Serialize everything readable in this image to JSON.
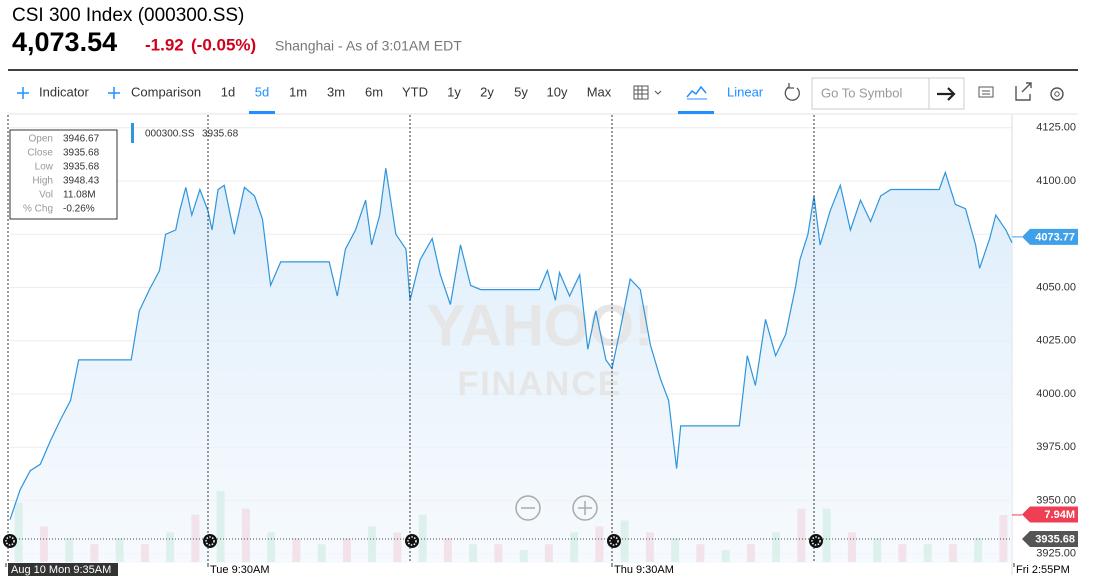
{
  "header": {
    "title": "CSI 300 Index (000300.SS)",
    "price": "4,073.54",
    "change": "-1.92",
    "change_pct": "(-0.05%)",
    "market_note": "Shanghai - As of 3:01AM EDT"
  },
  "toolbar": {
    "indicator": "Indicator",
    "comparison": "Comparison",
    "ranges": [
      "1d",
      "5d",
      "1m",
      "3m",
      "6m",
      "YTD",
      "1y",
      "2y",
      "5y",
      "10y",
      "Max"
    ],
    "active_range": "5d",
    "scale": "Linear",
    "symbol_placeholder": "Go To Symbol"
  },
  "info_box": [
    {
      "label": "Open",
      "value": "3946.67"
    },
    {
      "label": "Close",
      "value": "3935.68"
    },
    {
      "label": "Low",
      "value": "3935.68"
    },
    {
      "label": "High",
      "value": "3948.43"
    },
    {
      "label": "Vol",
      "value": "11.08M"
    },
    {
      "label": "% Chg",
      "value": "-0.26%"
    }
  ],
  "watermark": [
    "YAHOO!",
    "FINANCE"
  ],
  "chart_data": {
    "type": "line",
    "series": [
      {
        "name": "000300.SS",
        "legend_value": "3935.68",
        "color": "#2f95dc",
        "x": [
          0.02,
          0.07,
          0.12,
          0.17,
          0.22,
          0.27,
          0.32,
          0.36,
          0.62,
          0.66,
          0.71,
          0.76,
          0.79,
          0.84,
          0.86,
          0.89,
          0.92,
          0.96,
          1.0,
          1.02,
          1.05,
          1.08,
          1.13,
          1.18,
          1.23,
          1.27,
          1.31,
          1.36,
          1.6,
          1.64,
          1.68,
          1.73,
          1.78,
          1.81,
          1.85,
          1.88,
          1.93,
          1.98,
          2.0,
          2.05,
          2.11,
          2.15,
          2.2,
          2.25,
          2.3,
          2.35,
          2.64,
          2.68,
          2.72,
          2.74,
          2.79,
          2.84,
          2.88,
          2.92,
          2.97,
          3.0,
          3.04,
          3.09,
          3.14,
          3.19,
          3.24,
          3.28,
          3.32,
          3.34,
          3.63,
          3.67,
          3.71,
          3.76,
          3.81,
          3.86,
          3.91,
          3.93,
          3.97,
          4.0,
          4.03,
          4.08,
          4.13,
          4.18,
          4.23,
          4.28,
          4.33,
          4.38,
          4.62,
          4.65,
          4.7,
          4.75,
          4.8,
          4.82,
          4.87,
          4.9,
          4.95,
          4.98
        ],
        "values": [
          3941,
          3955,
          3964,
          3967,
          3978,
          3988,
          3997,
          4016,
          4016,
          4039,
          4049,
          4058,
          4075,
          4077,
          4086,
          4097,
          4084,
          4096,
          4086,
          4077,
          4096,
          4098,
          4075,
          4097,
          4093,
          4082,
          4051,
          4062,
          4062,
          4046,
          4068,
          4077,
          4091,
          4070,
          4084,
          4106,
          4075,
          4068,
          4044,
          4063,
          4073,
          4056,
          4042,
          4070,
          4051,
          4049,
          4049,
          4058,
          4044,
          4057,
          4046,
          4056,
          4021,
          4039,
          4016,
          4012,
          4030,
          4054,
          4049,
          4023,
          4007,
          3997,
          3965,
          3985,
          3985,
          4018,
          4004,
          4035,
          4018,
          4028,
          4051,
          4063,
          4075,
          4093,
          4070,
          4086,
          4098,
          4077,
          4091,
          4081,
          4093,
          4096,
          4096,
          4104,
          4089,
          4087,
          4070,
          4059,
          4073,
          4084,
          4077,
          4071
        ]
      }
    ],
    "volume": {
      "unit": "M",
      "up_color": "#a8e2c4",
      "down_color": "#f4aebd",
      "vlim": [
        0,
        13.5
      ],
      "values": [
        10,
        6,
        4,
        3,
        4,
        3,
        5,
        8,
        12,
        9,
        5,
        4,
        3,
        4,
        6,
        5,
        8,
        4,
        3,
        3,
        2,
        3,
        5,
        6,
        7,
        5,
        4,
        3,
        2,
        3,
        5,
        9,
        9,
        5,
        4,
        3,
        3,
        3,
        4,
        7.94
      ]
    },
    "xlim": [
      0,
      5
    ],
    "xticks": [
      {
        "value": 0,
        "label": "Aug 10 Mon 9:35AM"
      },
      {
        "value": 1,
        "label": "Tue 9:30AM"
      },
      {
        "value": 3,
        "label": "Thu 9:30AM"
      },
      {
        "value": 5,
        "label": "Fri 2:55PM"
      }
    ],
    "session_breaks": [
      0,
      1,
      2,
      3,
      4
    ],
    "ylim": [
      3925,
      4125
    ],
    "yticks": [
      {
        "value": 3925,
        "label": "3925.00"
      },
      {
        "value": 3950,
        "label": "3950.00"
      },
      {
        "value": 3975,
        "label": "3975.00"
      },
      {
        "value": 4000,
        "label": "4000.00"
      },
      {
        "value": 4025,
        "label": "4025.00"
      },
      {
        "value": 4050,
        "label": "4050.00"
      },
      {
        "value": 4075,
        "label": "4075.00"
      },
      {
        "value": 4100,
        "label": "4100.00"
      },
      {
        "value": 4125,
        "label": "4125.00"
      }
    ],
    "grid": true,
    "last_price": {
      "value": 4073.77,
      "label": "4073.77",
      "color": "#3fa0ea"
    },
    "last_volume": {
      "value": 7.94,
      "label": "7.94M",
      "color": "#ee3f55"
    },
    "prev_close": {
      "value": 3935.68,
      "label": "3935.68",
      "color": "#555555"
    }
  }
}
